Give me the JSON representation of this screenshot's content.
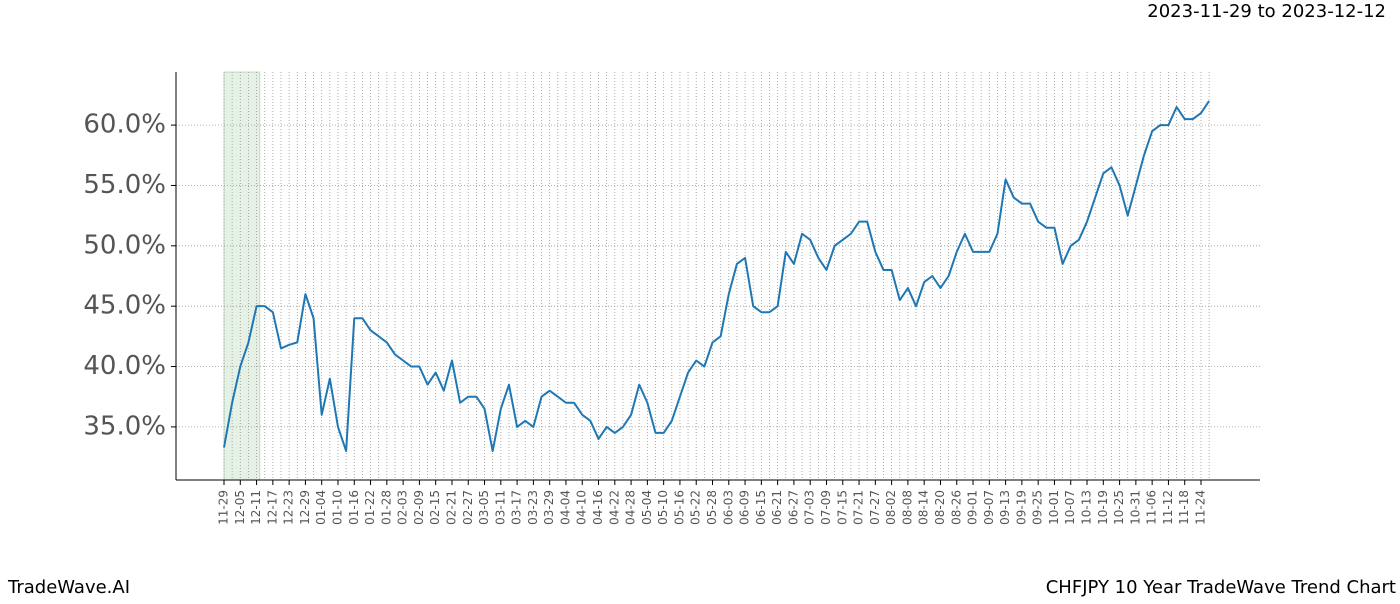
{
  "chart_data": {
    "type": "line",
    "title": "CHFJPY 10 Year TradeWave Trend Chart",
    "subtitle": "2023-11-29 to 2023-12-12",
    "watermark": "TradeWave.AI",
    "categories": [
      "11-29",
      null,
      "12-05",
      null,
      "12-11",
      null,
      "12-17",
      null,
      "12-23",
      null,
      "12-29",
      null,
      "01-04",
      null,
      "01-10",
      null,
      "01-16",
      null,
      "01-22",
      null,
      "01-28",
      null,
      "02-03",
      null,
      "02-09",
      null,
      "02-15",
      null,
      "02-21",
      null,
      "02-27",
      null,
      "03-05",
      null,
      "03-11",
      null,
      "03-17",
      null,
      "03-23",
      null,
      "03-29",
      null,
      "04-04",
      null,
      "04-10",
      null,
      "04-16",
      null,
      "04-22",
      null,
      "04-28",
      null,
      "05-04",
      null,
      "05-10",
      null,
      "05-16",
      null,
      "05-22",
      null,
      "05-28",
      null,
      "06-03",
      null,
      "06-09",
      null,
      "06-15",
      null,
      "06-21",
      null,
      "06-27",
      null,
      "07-03",
      null,
      "07-09",
      null,
      "07-15",
      null,
      "07-21",
      null,
      "07-27",
      null,
      "08-02",
      null,
      "08-08",
      null,
      "08-14",
      null,
      "08-20",
      null,
      "08-26",
      null,
      "09-01",
      null,
      "09-07",
      null,
      "09-13",
      null,
      "09-19",
      null,
      "09-25",
      null,
      "10-01",
      null,
      "10-07",
      null,
      "10-13",
      null,
      "10-19",
      null,
      "10-25",
      null,
      "10-31",
      null,
      "11-06",
      null,
      "11-12",
      null,
      "11-18",
      null,
      "11-24",
      null
    ],
    "values": [
      33.3,
      37,
      40,
      42,
      45,
      45,
      44.5,
      41.5,
      41.8,
      42,
      46,
      44,
      36,
      39,
      35,
      33,
      44,
      44,
      43,
      42.5,
      42,
      41,
      40.5,
      40,
      40,
      38.5,
      39.5,
      38,
      40.5,
      37,
      37.5,
      37.5,
      36.5,
      33,
      36.5,
      38.5,
      35,
      35.5,
      35,
      37.5,
      38,
      37.5,
      37,
      37,
      36,
      35.5,
      34,
      35,
      34.5,
      35,
      36,
      38.5,
      37,
      34.5,
      34.5,
      35.5,
      37.5,
      39.5,
      40.5,
      40,
      42,
      42.5,
      46,
      48.5,
      49,
      45,
      44.5,
      44.5,
      45,
      49.5,
      48.5,
      51,
      50.5,
      49,
      48,
      50,
      50.5,
      51,
      52,
      52,
      49.5,
      48,
      48,
      45.5,
      46.5,
      45,
      47,
      47.5,
      46.5,
      47.5,
      49.5,
      51,
      49.5,
      49.5,
      49.5,
      51,
      55.5,
      54,
      53.5,
      53.5,
      52,
      51.5,
      51.5,
      48.5,
      50,
      50.5,
      52,
      54,
      56,
      56.5,
      55,
      52.5,
      55,
      57.5,
      59.5,
      60,
      60,
      61.5,
      60.5,
      60.5,
      61,
      62
    ],
    "color": "#1f77b4",
    "ylim": [
      30.6,
      64.4
    ],
    "yticks": [
      {
        "value": 35,
        "label": "35.0%"
      },
      {
        "value": 40,
        "label": "40.0%"
      },
      {
        "value": 45,
        "label": "45.0%"
      },
      {
        "value": 50,
        "label": "50.0%"
      },
      {
        "value": 55,
        "label": "55.0%"
      },
      {
        "value": 60,
        "label": "60.0%"
      }
    ],
    "grid": true
  }
}
